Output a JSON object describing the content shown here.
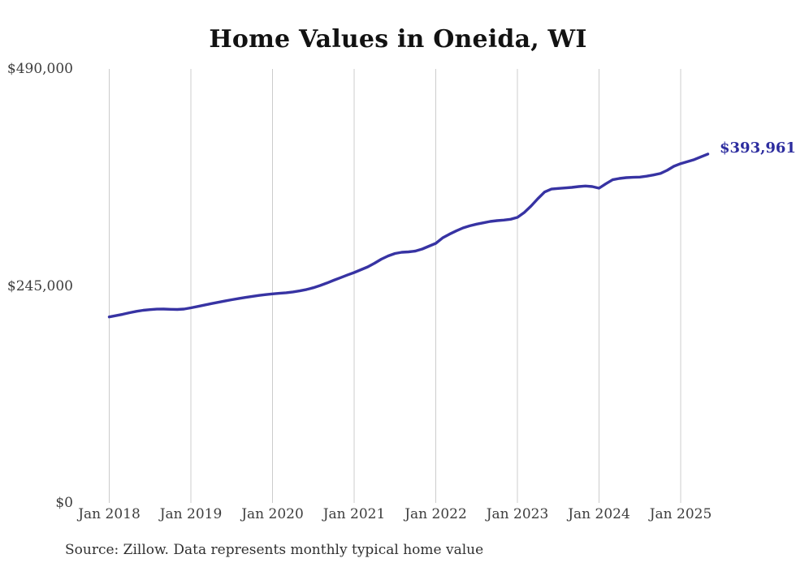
{
  "page": {
    "source_note": "Source: Zillow. Data represents monthly typical home value"
  },
  "chart_data": {
    "type": "line",
    "title": "Home Values in Oneida, WI",
    "xlabel": "",
    "ylabel": "",
    "ylim": [
      0,
      490000
    ],
    "grid": "vertical-only",
    "legend": "none",
    "x_start_month": "2018-01",
    "x_end_month": "2025-05",
    "x_tick_labels": [
      "Jan 2018",
      "Jan 2019",
      "Jan 2020",
      "Jan 2021",
      "Jan 2022",
      "Jan 2023",
      "Jan 2024",
      "Jan 2025"
    ],
    "x_tick_month_indices": [
      0,
      12,
      24,
      36,
      48,
      60,
      72,
      84
    ],
    "y_ticks": [
      {
        "label": "$0",
        "value": 0
      },
      {
        "label": "$245,000",
        "value": 245000
      },
      {
        "label": "$490,000",
        "value": 490000
      }
    ],
    "end_label": "$393,961",
    "end_value": 393961,
    "series": [
      {
        "name": "Monthly typical home value",
        "values": [
          210000,
          211500,
          213000,
          214800,
          216300,
          217500,
          218300,
          218800,
          218900,
          218600,
          218400,
          218900,
          220300,
          221800,
          223400,
          225000,
          226500,
          228000,
          229400,
          230700,
          232000,
          233200,
          234300,
          235200,
          236000,
          236700,
          237300,
          238200,
          239400,
          241000,
          243000,
          245500,
          248300,
          251400,
          254300,
          257300,
          260100,
          263300,
          266500,
          270600,
          275200,
          278900,
          281600,
          283000,
          283500,
          284400,
          286700,
          289900,
          293100,
          299200,
          303400,
          307100,
          310500,
          312900,
          314800,
          316300,
          317800,
          318700,
          319400,
          320300,
          322400,
          327900,
          335200,
          343500,
          351100,
          354400,
          355100,
          355600,
          356300,
          357200,
          357800,
          357200,
          355400,
          360300,
          364900,
          366400,
          367300,
          367600,
          367900,
          368900,
          370300,
          371900,
          375500,
          380100,
          383100,
          385300,
          387700,
          390800,
          393961
        ]
      }
    ],
    "colors": {
      "line": "#3733a3",
      "end_label": "#2d2d9f",
      "grid": "#cccccc",
      "tick_text": "#3d3d3d",
      "title_text": "#121212",
      "source_text": "#303030"
    }
  }
}
